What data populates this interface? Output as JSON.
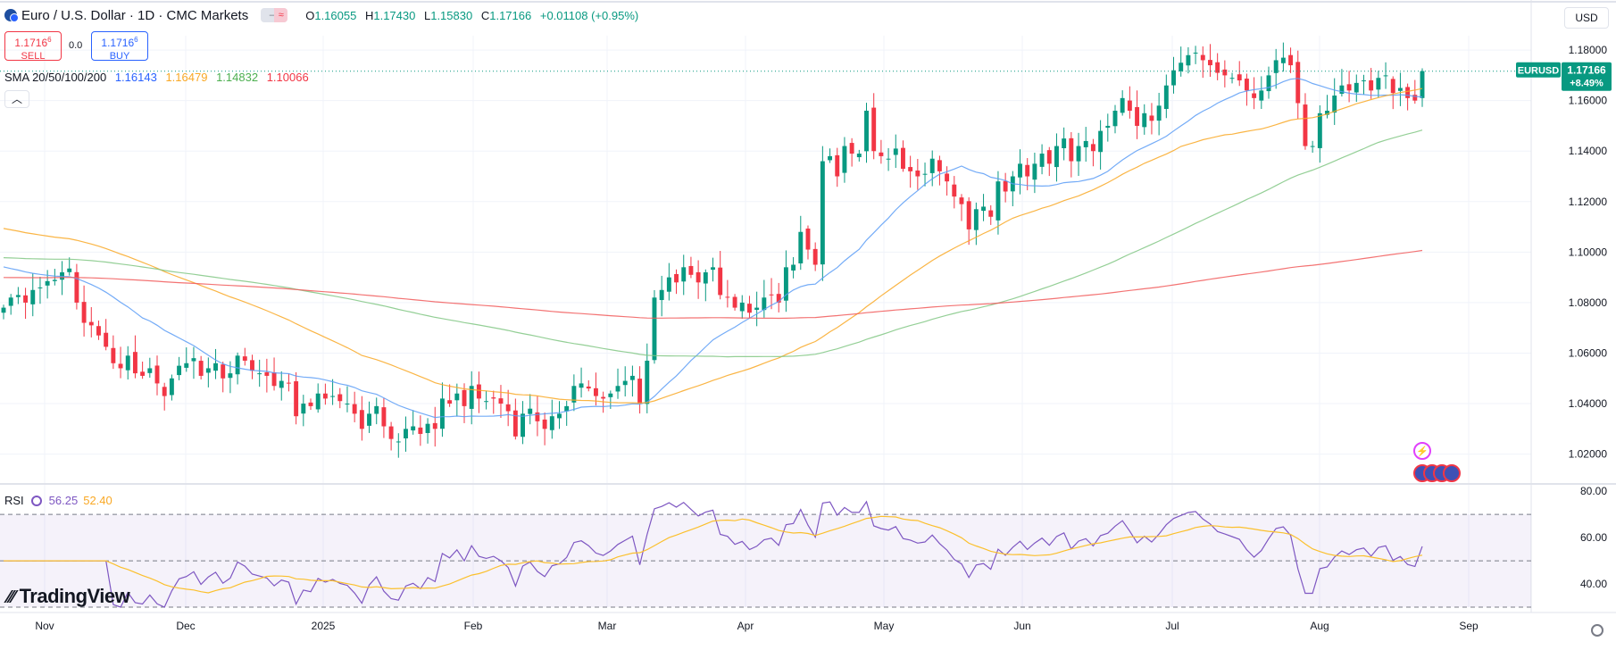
{
  "header": {
    "title": "Euro / U.S. Dollar · 1D · CMC Markets",
    "ohlc": {
      "o_label": "O",
      "o": "1.16055",
      "h_label": "H",
      "h": "1.17430",
      "l_label": "L",
      "l": "1.15830",
      "c_label": "C",
      "c": "1.17166",
      "change": "+0.01108 (+0.95%)"
    }
  },
  "trade": {
    "sell_price": "1.1716",
    "sell_price_sup": "6",
    "sell_label": "SELL",
    "spread": "0.0",
    "buy_price": "1.1716",
    "buy_price_sup": "6",
    "buy_label": "BUY"
  },
  "sma_legend": {
    "label": "SMA 20/50/100/200",
    "sma20": "1.16143",
    "sma50": "1.16479",
    "sma100": "1.14832",
    "sma200": "1.10066"
  },
  "rsi_legend": {
    "label": "RSI",
    "rsi": "56.25",
    "rsi_ma": "52.40"
  },
  "currency": "USD",
  "price_tag": {
    "symbol": "EURUSD",
    "price": "1.17166",
    "change_pct": "+8.49%"
  },
  "branding": "TradingView",
  "colors": {
    "up": "#089981",
    "down": "#f23645",
    "sma20": "#5b9cf6",
    "sma50": "#f9a825",
    "sma100": "#81c784",
    "sma200": "#f15a5a",
    "rsi": "#7e57c2",
    "rsi_ma": "#fbc02d"
  },
  "icons": [
    "currency-flag-icon",
    "collapse-chevron-icon",
    "rsi-loop-icon",
    "event-lightning-icon",
    "us-flag-icon",
    "settings-gear-icon"
  ],
  "chart_data": {
    "type": "candlestick",
    "symbol": "EURUSD",
    "price_axis": {
      "ticks": [
        "1.18000",
        "1.16000",
        "1.14000",
        "1.12000",
        "1.10000",
        "1.08000",
        "1.06000",
        "1.04000",
        "1.02000"
      ],
      "ylim": [
        1.0089,
        1.1857
      ]
    },
    "time_axis": {
      "ticks": [
        "Nov",
        "Dec",
        "2025",
        "Feb",
        "Mar",
        "Apr",
        "May",
        "Jun",
        "Jul",
        "Aug",
        "Sep"
      ]
    },
    "last_price": 1.17166,
    "ohlc_closes": [
      1.078,
      1.082,
      1.083,
      1.08,
      1.085,
      1.086,
      1.0885,
      1.089,
      1.092,
      1.0935,
      1.08,
      1.072,
      1.071,
      1.067,
      1.0625,
      1.056,
      1.054,
      1.059,
      1.052,
      1.051,
      1.054,
      1.048,
      1.043,
      1.05,
      1.055,
      1.056,
      1.058,
      1.051,
      1.054,
      1.056,
      1.05,
      1.052,
      1.059,
      1.057,
      1.053,
      1.052,
      1.051,
      1.047,
      1.049,
      1.048,
      1.035,
      1.04,
      1.039,
      1.044,
      1.042,
      1.043,
      1.041,
      1.04,
      1.036,
      1.03,
      1.036,
      1.039,
      1.031,
      1.026,
      1.025,
      1.03,
      1.031,
      1.028,
      1.032,
      1.03,
      1.042,
      1.04,
      1.044,
      1.039,
      1.047,
      1.042,
      1.041,
      1.042,
      1.04,
      1.037,
      1.027,
      1.036,
      1.038,
      1.033,
      1.03,
      1.035,
      1.036,
      1.039,
      1.047,
      1.048,
      1.046,
      1.043,
      1.042,
      1.044,
      1.047,
      1.049,
      1.051,
      1.04,
      1.057,
      1.082,
      1.085,
      1.09,
      1.088,
      1.094,
      1.091,
      1.088,
      1.092,
      1.094,
      1.083,
      1.082,
      1.078,
      1.08,
      1.076,
      1.078,
      1.082,
      1.083,
      1.08,
      1.094,
      1.095,
      1.108,
      1.101,
      1.095,
      1.136,
      1.138,
      1.13,
      1.142,
      1.139,
      1.139,
      1.156,
      1.14,
      1.138,
      1.137,
      1.141,
      1.133,
      1.132,
      1.13,
      1.131,
      1.137,
      1.132,
      1.128,
      1.122,
      1.119,
      1.109,
      1.117,
      1.118,
      1.114,
      1.128,
      1.124,
      1.13,
      1.135,
      1.13,
      1.135,
      1.139,
      1.135,
      1.142,
      1.145,
      1.136,
      1.142,
      1.144,
      1.14,
      1.148,
      1.15,
      1.156,
      1.161,
      1.156,
      1.15,
      1.155,
      1.152,
      1.158,
      1.166,
      1.172,
      1.175,
      1.178,
      1.179,
      1.176,
      1.174,
      1.171,
      1.17,
      1.169,
      1.168,
      1.164,
      1.161,
      1.164,
      1.17,
      1.176,
      1.177,
      1.174,
      1.159,
      1.142,
      1.142,
      1.155,
      1.156,
      1.162,
      1.166,
      1.164,
      1.167,
      1.168,
      1.164,
      1.169,
      1.17,
      1.163,
      1.165,
      1.161,
      1.16,
      1.1717
    ],
    "series": [
      {
        "name": "SMA 20",
        "last": 1.16143
      },
      {
        "name": "SMA 50",
        "last": 1.16479
      },
      {
        "name": "SMA 100",
        "last": 1.14832
      },
      {
        "name": "SMA 200",
        "last": 1.10066
      }
    ],
    "rsi": {
      "axis_ticks": [
        "80.00",
        "60.00",
        "40.00"
      ],
      "ylim": [
        30,
        82
      ],
      "bands": [
        70,
        50,
        30
      ],
      "last_rsi": 56.25,
      "last_ma": 52.4
    }
  }
}
